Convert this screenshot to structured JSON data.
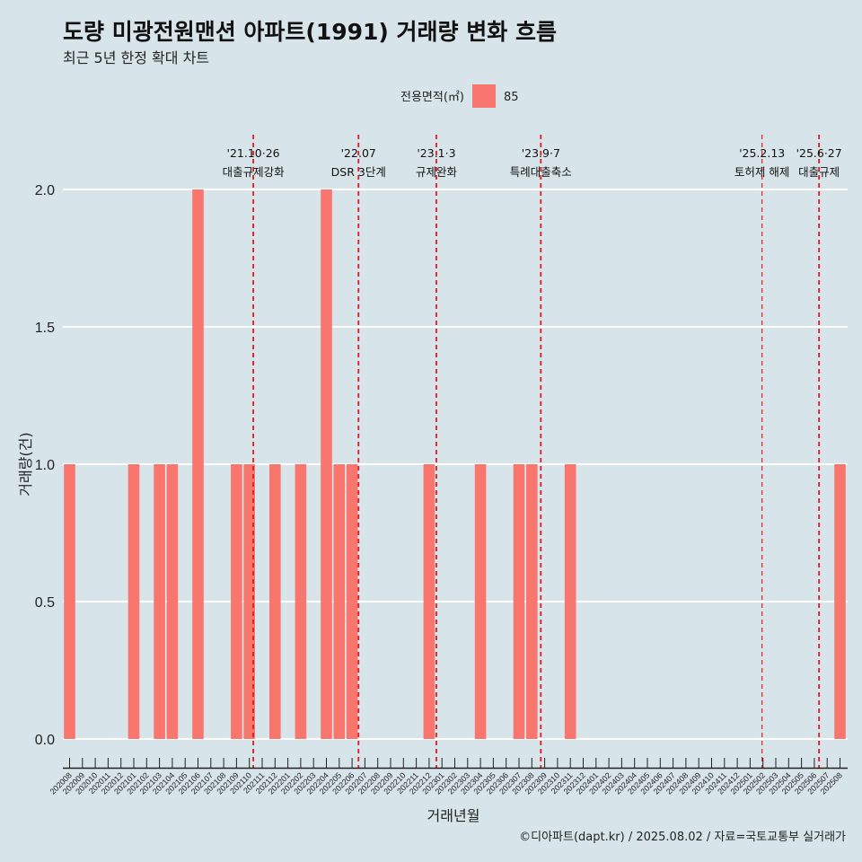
{
  "title": "도량 미광전원맨션 아파트(1991) 거래량 변화 흐름",
  "subtitle": "최근 5년 한정 확대 차트",
  "legend": {
    "title": "전용면적(㎡)",
    "items": [
      {
        "label": "85",
        "color": "#f8766d"
      }
    ]
  },
  "caption": "©디아파트(dapt.kr) / 2025.08.02 / 자료=국토교통부 실거래가",
  "chart_data": {
    "type": "bar",
    "title": "도량 미광전원맨션 아파트(1991) 거래량 변화 흐름",
    "subtitle": "최근 5년 한정 확대 차트",
    "xlabel": "거래년월",
    "ylabel": "거래량(건)",
    "ylim": [
      0,
      2
    ],
    "yticks": [
      "0.0",
      "0.5",
      "1.0",
      "1.5",
      "2.0"
    ],
    "grid": "horizontal major lines",
    "legend_position": "top",
    "categories": [
      "202008",
      "202009",
      "202010",
      "202011",
      "202012",
      "202101",
      "202102",
      "202103",
      "202104",
      "202105",
      "202106",
      "202107",
      "202108",
      "202109",
      "202110",
      "202111",
      "202112",
      "202201",
      "202202",
      "202203",
      "202204",
      "202205",
      "202206",
      "202207",
      "202208",
      "202209",
      "202210",
      "202211",
      "202212",
      "202301",
      "202302",
      "202303",
      "202304",
      "202305",
      "202306",
      "202307",
      "202308",
      "202309",
      "202310",
      "202311",
      "202312",
      "202401",
      "202402",
      "202403",
      "202404",
      "202405",
      "202406",
      "202407",
      "202408",
      "202409",
      "202410",
      "202411",
      "202412",
      "202501",
      "202502",
      "202503",
      "202504",
      "202505",
      "202506",
      "202507",
      "202508"
    ],
    "series": [
      {
        "name": "85",
        "color": "#f8766d",
        "values": [
          1,
          0,
          0,
          0,
          0,
          1,
          0,
          1,
          1,
          0,
          2,
          0,
          0,
          1,
          1,
          0,
          1,
          0,
          1,
          0,
          2,
          1,
          1,
          0,
          0,
          0,
          0,
          0,
          1,
          0,
          0,
          0,
          1,
          0,
          0,
          1,
          1,
          0,
          0,
          1,
          0,
          0,
          0,
          0,
          0,
          0,
          0,
          0,
          0,
          0,
          0,
          0,
          0,
          0,
          0,
          0,
          0,
          0,
          0,
          0,
          1
        ]
      }
    ],
    "annotations": [
      {
        "date": "2021-10-26",
        "label_top": "'21.10·26",
        "label_bottom": "대출규제강화",
        "color": "#e41a1c"
      },
      {
        "date": "2022-07-01",
        "label_top": "'22.07",
        "label_bottom": "DSR 3단계",
        "color": "#e41a1c"
      },
      {
        "date": "2023-01-03",
        "label_top": "'23.1·3",
        "label_bottom": "규제완화",
        "color": "#e41a1c"
      },
      {
        "date": "2023-09-07",
        "label_top": "'23.9·7",
        "label_bottom": "특례대출축소",
        "color": "#e41a1c"
      },
      {
        "date": "2025-02-13",
        "label_top": "'25.2.13",
        "label_bottom": "토허제 해제",
        "color": "#e41a1c",
        "minor": true
      },
      {
        "date": "2025-06-27",
        "label_top": "'25.6·27",
        "label_bottom": "대출규제",
        "color": "#e41a1c"
      }
    ]
  }
}
